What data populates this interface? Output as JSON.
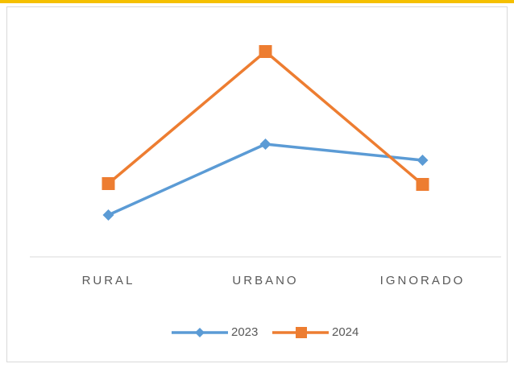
{
  "chart_data": {
    "type": "line",
    "categories": [
      "RURAL",
      "URBANO",
      "IGNORADO"
    ],
    "series": [
      {
        "name": "2023",
        "color": "#5b9bd5",
        "marker": "diamond",
        "values": [
          52,
          140,
          120
        ]
      },
      {
        "name": "2024",
        "color": "#ed7d31",
        "marker": "square",
        "values": [
          91,
          255,
          90
        ]
      }
    ],
    "ylim": [
      0,
      300
    ],
    "legend": "bottom"
  }
}
